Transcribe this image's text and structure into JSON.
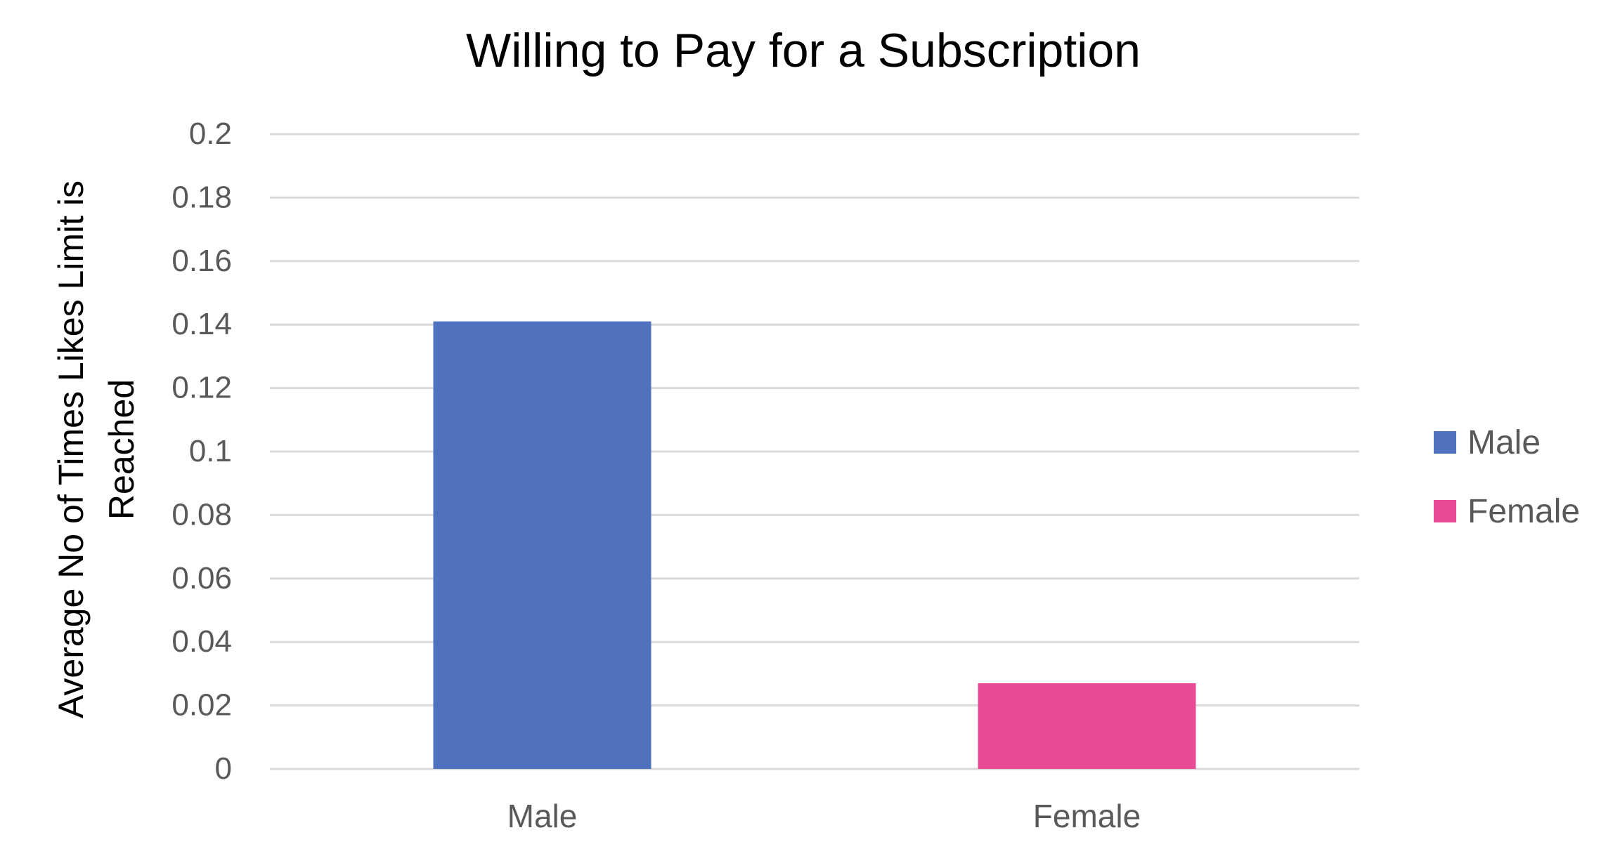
{
  "chart_data": {
    "type": "bar",
    "title": "Willing to Pay for a Subscription",
    "xlabel": "",
    "ylabel": "Average No of Times Likes Limit is Reached",
    "ylabel_lines": [
      "Average No of Times Likes Limit is",
      "Reached"
    ],
    "categories": [
      "Male",
      "Female"
    ],
    "values": [
      0.141,
      0.027
    ],
    "bar_colors": [
      "#4F71BE",
      "#E84A96"
    ],
    "ylim": [
      0,
      0.2
    ],
    "yticks": [
      0,
      0.02,
      0.04,
      0.06,
      0.08,
      0.1,
      0.12,
      0.14,
      0.16,
      0.18,
      0.2
    ],
    "ytick_labels": [
      "0",
      "0.02",
      "0.04",
      "0.06",
      "0.08",
      "0.1",
      "0.12",
      "0.14",
      "0.16",
      "0.18",
      "0.2"
    ],
    "grid": true,
    "legend": {
      "position": "right",
      "entries": [
        {
          "label": "Male",
          "color": "#4F71BE"
        },
        {
          "label": "Female",
          "color": "#E84A96"
        }
      ]
    },
    "colors": {
      "grid": "#D9D9D9",
      "tick_text": "#595959",
      "title_text": "#000000"
    }
  }
}
